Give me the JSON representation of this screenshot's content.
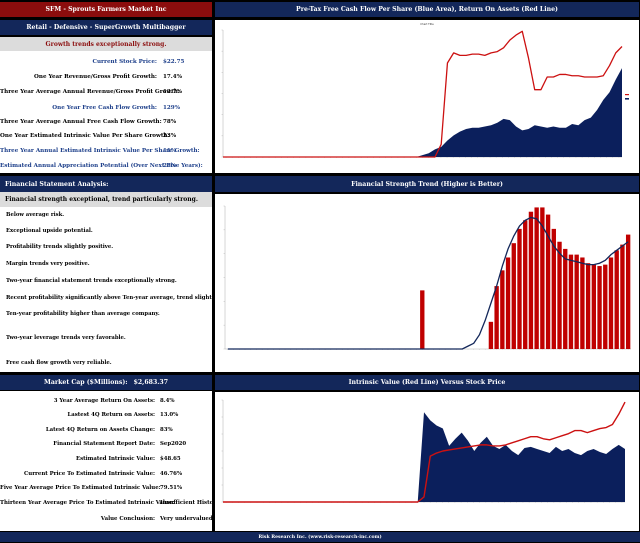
{
  "title_bar": "SFM - Sprouts Farmers Market Inc",
  "growth_panel": {
    "subtitle": "Retail - Defensive - SuperGrowth Multibagger",
    "highlight": "Growth trends exceptionally strong.",
    "rows": [
      {
        "label": "Current Stock Price:",
        "value": "$22.75",
        "blue": true
      },
      {
        "label": "One Year Revenue/Gross Profit Growth:",
        "value": "17.4%",
        "blue": false
      },
      {
        "label": "Three Year Average Annual Revenue/Gross Profit Growth:",
        "value": "12.7%",
        "blue": false
      },
      {
        "label": "One Year Free Cash Flow Growth:",
        "value": "129%",
        "blue": true
      },
      {
        "label": "Three Year Average Annual Free Cash Flow Growth:",
        "value": "78%",
        "blue": false
      },
      {
        "label": "One Year Estimated Intrinsic Value Per Share Growth:",
        "value": "23%",
        "blue": false
      },
      {
        "label": "Three Year Annual Estimated Intrinsic Value Per Share Growth:",
        "value": "11%",
        "blue": true
      },
      {
        "label": "Estimated Annual Appreciation Potential (Over Next Five Years):",
        "value": "28%",
        "blue": true
      }
    ]
  },
  "fsa_panel": {
    "header": "Financial Statement Analysis:",
    "highlight": "Financial strength exceptional, trend particularly strong.",
    "items": [
      "Below average risk.",
      "Exceptional upside potential.",
      "Profitability trends slightly positive.",
      "Margin trends very positive.",
      "Two-year financial statement trends exceptionally strong.",
      "Recent profitability significantly above Ten-year average, trend slightly positive.",
      "Ten-year profitability higher than average company.",
      "Two-year leverage trends very favorable.",
      "Free cash flow growth very reliable."
    ]
  },
  "value_panel": {
    "market_cap_label": "Market Cap ($Millions):",
    "market_cap_value": "$2,683.37",
    "rows": [
      {
        "label": "3 Year Average Return On Assets:",
        "value": "8.4%"
      },
      {
        "label": "Lastest 4Q Return on Assets:",
        "value": "13.0%"
      },
      {
        "label": "Latest 4Q Return on Assets Change:",
        "value": "83%"
      },
      {
        "label": "Financial Statement Report Date:",
        "value": "Sep2020"
      },
      {
        "label": "Estimated Intrinsic Value:",
        "value": "$48.65"
      },
      {
        "label": "Current Price To Estimated Intrinsic Value:",
        "value": "46.76%"
      },
      {
        "label": "Five Year Average Price To Estimated Intrinsic Value:",
        "value": "79.51%"
      },
      {
        "label": "Thirteen Year Average Price To Estimated Intrinsic Value:",
        "value": "Insufficient History"
      },
      {
        "label": "Value Conclusion:",
        "value": "Very undervalued."
      }
    ]
  },
  "footer": "Risk Research Inc. (www.risk-research-inc.com)",
  "colors": {
    "navy": "#13275a",
    "maroon": "#8b0d0d",
    "area": "#0b1f5c",
    "line": "#cc1111",
    "bar": "#c00000"
  },
  "chart_data": [
    {
      "type": "area",
      "title": "Pre-Tax Free Cash Flow Per Share (Blue Area), Return On Assets (Red Line)",
      "legend_text": "Chart Title",
      "series": [
        {
          "values": [
            0,
            0,
            0,
            0,
            0,
            0,
            0,
            0,
            0,
            0,
            0,
            0,
            0,
            0,
            0,
            0,
            0,
            0,
            0,
            0,
            0,
            0,
            0,
            0,
            0,
            0,
            0,
            0,
            0,
            0,
            0,
            0,
            1.5,
            3,
            6,
            8,
            13,
            17,
            20,
            22,
            23,
            23,
            24,
            25,
            27,
            30,
            29,
            24,
            21,
            22,
            25,
            24,
            23,
            24,
            23,
            23,
            26,
            25,
            29,
            31,
            37,
            45,
            51,
            61,
            70
          ]
        },
        {
          "values": [
            0,
            0,
            0,
            0,
            0,
            0,
            0,
            0,
            0,
            0,
            0,
            0,
            0,
            0,
            0,
            0,
            0,
            0,
            0,
            0,
            0,
            0,
            0,
            0,
            0,
            0,
            0,
            0,
            0,
            0,
            0,
            0,
            0,
            0,
            0,
            10,
            74,
            82,
            80,
            80,
            81,
            81,
            80,
            82,
            83,
            86,
            92,
            96,
            99,
            78,
            53,
            53,
            63,
            63,
            65,
            65,
            64,
            64,
            63,
            63,
            63,
            64,
            72,
            82,
            87
          ]
        }
      ]
    },
    {
      "type": "bar",
      "title": "Financial Strength Trend (Higher is Better)",
      "series": [
        {
          "values": [
            0,
            0,
            0,
            0,
            0,
            0,
            0,
            0,
            0,
            0,
            0,
            0,
            0,
            0,
            0,
            0,
            0,
            0,
            0,
            0,
            0,
            0,
            0,
            0,
            0,
            0,
            0,
            0,
            0,
            0,
            0,
            0,
            0,
            0,
            41,
            0,
            0,
            0,
            0,
            0,
            0,
            0,
            0,
            0,
            0,
            0,
            19,
            44,
            55,
            64,
            74,
            84,
            90,
            96,
            99,
            99,
            94,
            84,
            75,
            70,
            66,
            66,
            64,
            60,
            59,
            58,
            59,
            64,
            69,
            73,
            80
          ]
        },
        {
          "values": [
            0,
            0,
            0,
            0,
            0,
            0,
            0,
            0,
            0,
            0,
            0,
            0,
            0,
            0,
            0,
            0,
            0,
            0,
            0,
            0,
            0,
            0,
            0,
            0,
            0,
            0,
            0,
            0,
            0,
            0,
            0,
            0,
            0,
            0,
            0,
            0,
            0,
            0,
            0,
            0,
            0,
            0,
            2,
            4,
            10,
            20,
            32,
            44,
            58,
            70,
            79,
            86,
            90,
            92,
            91,
            86,
            79,
            72,
            67,
            63,
            62,
            61,
            60,
            59,
            59,
            60,
            62,
            66,
            69,
            72,
            75
          ]
        }
      ]
    },
    {
      "type": "area",
      "title": "Intrinsic Value (Red Line) Versus Stock Price",
      "series": [
        {
          "values": [
            0,
            0,
            0,
            0,
            0,
            0,
            0,
            0,
            0,
            0,
            0,
            0,
            0,
            0,
            0,
            0,
            0,
            0,
            0,
            0,
            0,
            0,
            0,
            0,
            0,
            0,
            0,
            0,
            0,
            0,
            0,
            0,
            88,
            80,
            75,
            72,
            55,
            62,
            68,
            60,
            50,
            58,
            64,
            55,
            52,
            56,
            50,
            46,
            53,
            54,
            52,
            50,
            48,
            54,
            50,
            52,
            48,
            46,
            50,
            52,
            49,
            47,
            52,
            56,
            52
          ]
        },
        {
          "values": [
            0,
            0,
            0,
            0,
            0,
            0,
            0,
            0,
            0,
            0,
            0,
            0,
            0,
            0,
            0,
            0,
            0,
            0,
            0,
            0,
            0,
            0,
            0,
            0,
            0,
            0,
            0,
            0,
            0,
            0,
            0,
            0,
            5,
            45,
            48,
            50,
            51,
            52,
            53,
            54,
            55,
            56,
            56,
            55,
            55,
            56,
            58,
            60,
            62,
            64,
            64,
            62,
            61,
            63,
            65,
            67,
            70,
            70,
            68,
            70,
            72,
            73,
            76,
            86,
            98
          ]
        }
      ]
    }
  ]
}
